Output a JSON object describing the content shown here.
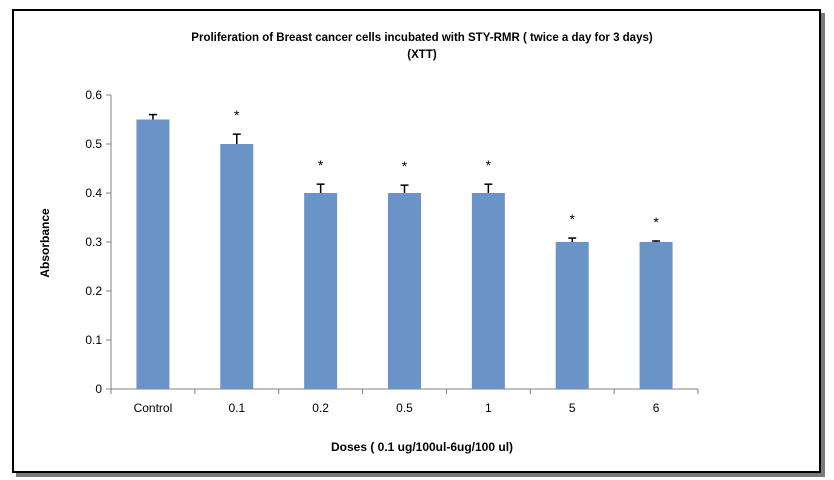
{
  "chart_data": {
    "type": "bar",
    "title": "Proliferation of Breast cancer cells incubated with STY-RMR ( twice a day for 3 days)",
    "subtitle": "(XTT)",
    "xlabel": "Doses ( 0.1 ug/100ul-6ug/100 ul)",
    "ylabel": "Absorbance",
    "categories": [
      "Control",
      "0.1",
      "0.2",
      "0.5",
      "1",
      "5",
      "6"
    ],
    "values": [
      0.55,
      0.5,
      0.4,
      0.4,
      0.4,
      0.3,
      0.3
    ],
    "errors": [
      0.01,
      0.02,
      0.018,
      0.016,
      0.018,
      0.008,
      0.002
    ],
    "annotations": [
      "",
      "*",
      "*",
      "*",
      "*",
      "*",
      "*"
    ],
    "ylim": [
      0,
      0.6
    ],
    "yticks": [
      "0",
      "0.1",
      "0.2",
      "0.3",
      "0.4",
      "0.5",
      "0.6"
    ],
    "grid": false,
    "legend": "none",
    "bar_color": "#6a93c8"
  }
}
